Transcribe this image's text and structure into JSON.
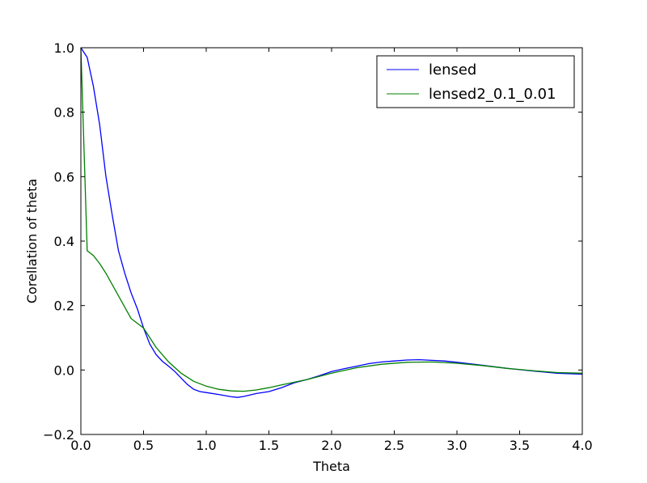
{
  "chart_data": {
    "type": "line",
    "title": "",
    "xlabel": "Theta",
    "ylabel": "Corellation of theta",
    "xlim": [
      0.0,
      4.0
    ],
    "ylim": [
      -0.2,
      1.0
    ],
    "xticks": [
      "0.0",
      "0.5",
      "1.0",
      "1.5",
      "2.0",
      "2.5",
      "3.0",
      "3.5",
      "4.0"
    ],
    "yticks": [
      "−0.2",
      "0.0",
      "0.2",
      "0.4",
      "0.6",
      "0.8",
      "1.0"
    ],
    "grid": false,
    "legend_position": "top-right",
    "series": [
      {
        "name": "lensed",
        "color": "#0000ff",
        "x": [
          0,
          0.05,
          0.1,
          0.15,
          0.2,
          0.25,
          0.3,
          0.35,
          0.4,
          0.45,
          0.5,
          0.55,
          0.6,
          0.65,
          0.7,
          0.75,
          0.8,
          0.85,
          0.9,
          0.95,
          1.0,
          1.1,
          1.2,
          1.25,
          1.3,
          1.4,
          1.5,
          1.6,
          1.7,
          1.8,
          1.9,
          2.0,
          2.1,
          2.2,
          2.3,
          2.4,
          2.5,
          2.6,
          2.7,
          2.8,
          2.9,
          3.0,
          3.2,
          3.4,
          3.6,
          3.8,
          4.0
        ],
        "y": [
          1.0,
          0.97,
          0.88,
          0.76,
          0.6,
          0.48,
          0.37,
          0.3,
          0.24,
          0.19,
          0.13,
          0.08,
          0.048,
          0.027,
          0.012,
          -0.005,
          -0.025,
          -0.045,
          -0.06,
          -0.067,
          -0.07,
          -0.076,
          -0.083,
          -0.085,
          -0.082,
          -0.073,
          -0.067,
          -0.055,
          -0.04,
          -0.03,
          -0.018,
          -0.005,
          0.004,
          0.012,
          0.02,
          0.025,
          0.028,
          0.031,
          0.032,
          0.03,
          0.028,
          0.024,
          0.015,
          0.005,
          -0.003,
          -0.01,
          -0.013
        ]
      },
      {
        "name": "lensed2_0.1_0.01",
        "color": "#008000",
        "x": [
          0,
          0.05,
          0.1,
          0.15,
          0.2,
          0.25,
          0.3,
          0.35,
          0.4,
          0.45,
          0.5,
          0.6,
          0.7,
          0.8,
          0.9,
          1.0,
          1.1,
          1.2,
          1.3,
          1.4,
          1.5,
          1.6,
          1.8,
          2.0,
          2.2,
          2.4,
          2.6,
          2.8,
          3.0,
          3.2,
          3.4,
          3.6,
          3.8,
          4.0
        ],
        "y": [
          1.0,
          0.37,
          0.355,
          0.33,
          0.3,
          0.265,
          0.23,
          0.195,
          0.16,
          0.145,
          0.13,
          0.07,
          0.025,
          -0.01,
          -0.035,
          -0.05,
          -0.06,
          -0.065,
          -0.066,
          -0.062,
          -0.055,
          -0.046,
          -0.03,
          -0.01,
          0.007,
          0.018,
          0.024,
          0.025,
          0.021,
          0.014,
          0.005,
          -0.002,
          -0.008,
          -0.01
        ]
      }
    ]
  }
}
